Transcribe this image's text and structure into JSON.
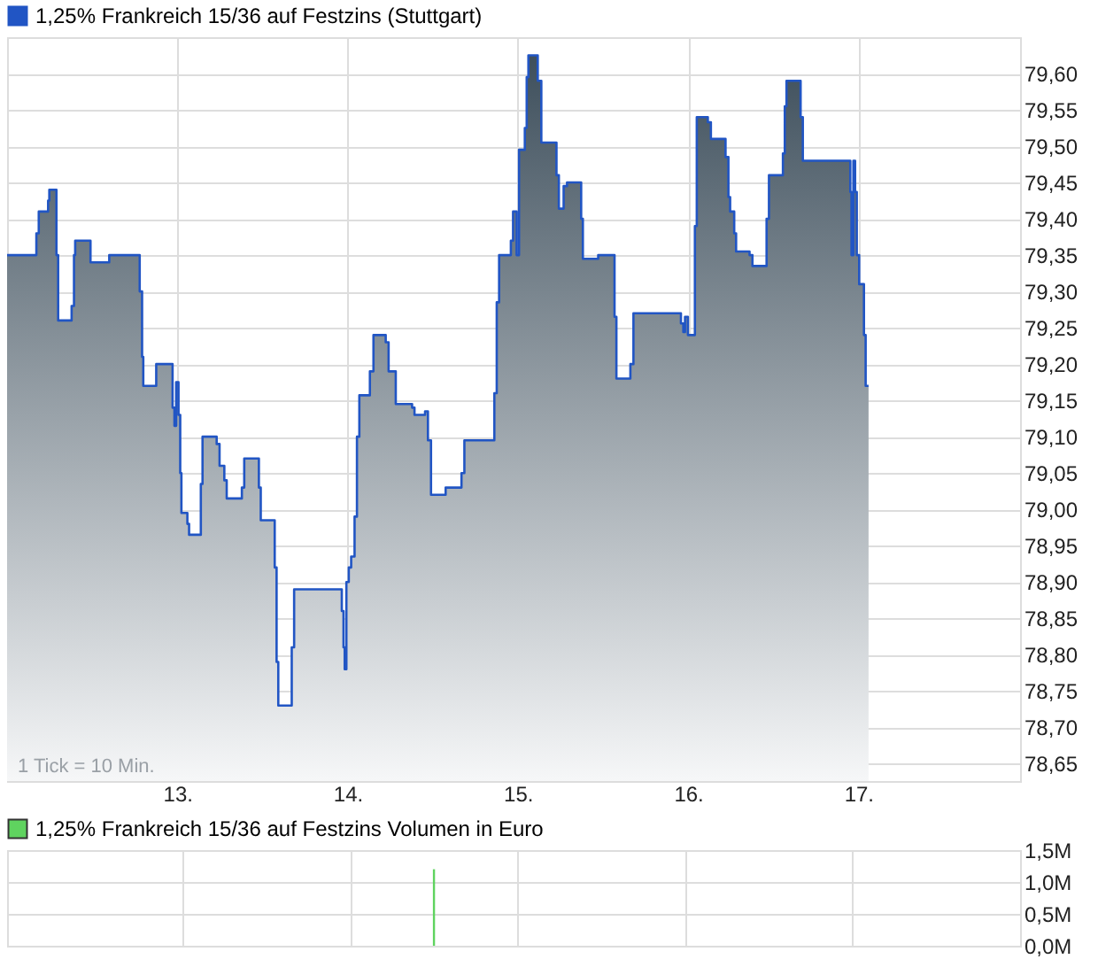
{
  "chart_data": [
    {
      "type": "area",
      "legend": "top left",
      "grid": true,
      "annotations": [
        "1 Tick = 10 Min."
      ],
      "xlim": [
        12.0,
        17.95
      ],
      "xticks": [
        {
          "value": 13,
          "label": "13."
        },
        {
          "value": 14,
          "label": "14."
        },
        {
          "value": 15,
          "label": "15."
        },
        {
          "value": 16,
          "label": "16."
        },
        {
          "value": 17,
          "label": "17."
        }
      ],
      "ylim": [
        78.626,
        79.65
      ],
      "yticks": [
        {
          "value": 78.65,
          "label": "78,65"
        },
        {
          "value": 78.7,
          "label": "78,70"
        },
        {
          "value": 78.75,
          "label": "78,75"
        },
        {
          "value": 78.8,
          "label": "78,80"
        },
        {
          "value": 78.85,
          "label": "78,85"
        },
        {
          "value": 78.9,
          "label": "78,90"
        },
        {
          "value": 78.95,
          "label": "78,95"
        },
        {
          "value": 79.0,
          "label": "79,00"
        },
        {
          "value": 79.05,
          "label": "79,05"
        },
        {
          "value": 79.1,
          "label": "79,10"
        },
        {
          "value": 79.15,
          "label": "79,15"
        },
        {
          "value": 79.2,
          "label": "79,20"
        },
        {
          "value": 79.25,
          "label": "79,25"
        },
        {
          "value": 79.3,
          "label": "79,30"
        },
        {
          "value": 79.35,
          "label": "79,35"
        },
        {
          "value": 79.4,
          "label": "79,40"
        },
        {
          "value": 79.45,
          "label": "79,45"
        },
        {
          "value": 79.5,
          "label": "79,50"
        },
        {
          "value": 79.55,
          "label": "79,55"
        },
        {
          "value": 79.6,
          "label": "79,60"
        }
      ],
      "series": [
        {
          "name": "1,25% Frankreich 15/36 auf Festzins (Stuttgart)",
          "color": "#2155c4",
          "x": [
            12.0,
            12.172,
            12.172,
            12.186,
            12.186,
            12.241,
            12.241,
            12.248,
            12.248,
            12.29,
            12.29,
            12.3,
            12.3,
            12.379,
            12.379,
            12.393,
            12.393,
            12.4,
            12.4,
            12.49,
            12.49,
            12.576,
            12.576,
            12.6,
            12.6,
            12.779,
            12.779,
            12.793,
            12.793,
            12.8,
            12.8,
            12.876,
            12.876,
            12.886,
            12.886,
            12.972,
            12.972,
            12.983,
            12.983,
            12.993,
            12.993,
            13.007,
            13.007,
            13.017,
            13.017,
            13.024,
            13.024,
            13.059,
            13.059,
            13.069,
            13.069,
            13.138,
            13.138,
            13.148,
            13.148,
            13.231,
            13.231,
            13.248,
            13.248,
            13.276,
            13.276,
            13.29,
            13.29,
            13.379,
            13.379,
            13.393,
            13.393,
            13.479,
            13.479,
            13.49,
            13.49,
            13.572,
            13.572,
            13.583,
            13.583,
            13.593,
            13.593,
            13.672,
            13.672,
            13.686,
            13.686,
            13.966,
            13.966,
            13.976,
            13.976,
            13.983,
            13.983,
            13.993,
            13.993,
            14.007,
            14.007,
            14.021,
            14.021,
            14.041,
            14.041,
            14.055,
            14.055,
            14.069,
            14.069,
            14.131,
            14.131,
            14.152,
            14.152,
            14.224,
            14.224,
            14.241,
            14.241,
            14.283,
            14.283,
            14.379,
            14.379,
            14.393,
            14.393,
            14.455,
            14.455,
            14.472,
            14.472,
            14.49,
            14.49,
            14.576,
            14.576,
            14.669,
            14.669,
            14.686,
            14.686,
            14.862,
            14.862,
            14.876,
            14.876,
            14.89,
            14.89,
            14.959,
            14.959,
            14.972,
            14.972,
            14.993,
            14.993,
            15.007,
            15.007,
            15.041,
            15.041,
            15.052,
            15.052,
            15.062,
            15.062,
            15.117,
            15.117,
            15.138,
            15.138,
            15.227,
            15.227,
            15.241,
            15.241,
            15.269,
            15.269,
            15.289,
            15.289,
            15.372,
            15.372,
            15.382,
            15.382,
            15.472,
            15.472,
            15.568,
            15.568,
            15.579,
            15.579,
            15.661,
            15.661,
            15.679,
            15.679,
            15.958,
            15.958,
            15.972,
            15.972,
            15.982,
            15.982,
            15.999,
            15.999,
            16.04,
            16.04,
            16.051,
            16.051,
            16.116,
            16.116,
            16.134,
            16.134,
            16.22,
            16.22,
            16.237,
            16.237,
            16.247,
            16.247,
            16.271,
            16.271,
            16.282,
            16.282,
            16.361,
            16.361,
            16.378,
            16.378,
            16.461,
            16.461,
            16.475,
            16.475,
            16.557,
            16.557,
            16.568,
            16.568,
            16.578,
            16.578,
            16.661,
            16.661,
            16.674,
            16.674,
            16.953,
            16.953,
            16.96,
            16.96,
            16.971,
            16.971,
            16.981,
            16.981,
            16.991,
            16.991,
            17.005,
            17.005,
            17.033,
            17.033,
            17.043,
            17.043,
            17.06
          ],
          "values": [
            79.35,
            79.35,
            79.38,
            79.38,
            79.41,
            79.41,
            79.425,
            79.425,
            79.44,
            79.44,
            79.35,
            79.35,
            79.26,
            79.26,
            79.28,
            79.28,
            79.35,
            79.35,
            79.37,
            79.37,
            79.34,
            79.34,
            79.34,
            79.34,
            79.35,
            79.35,
            79.3,
            79.3,
            79.21,
            79.21,
            79.17,
            79.17,
            79.2,
            79.2,
            79.2,
            79.2,
            79.14,
            79.14,
            79.115,
            79.115,
            79.175,
            79.175,
            79.13,
            79.13,
            79.05,
            79.05,
            78.995,
            78.995,
            78.98,
            78.98,
            78.965,
            78.965,
            79.035,
            79.035,
            79.1,
            79.1,
            79.09,
            79.09,
            79.06,
            79.06,
            79.04,
            79.04,
            79.015,
            79.015,
            79.03,
            79.03,
            79.07,
            79.07,
            79.03,
            79.03,
            78.985,
            78.985,
            78.92,
            78.92,
            78.79,
            78.79,
            78.73,
            78.73,
            78.81,
            78.81,
            78.89,
            78.89,
            78.86,
            78.86,
            78.81,
            78.81,
            78.78,
            78.78,
            78.9,
            78.9,
            78.92,
            78.92,
            78.935,
            78.935,
            78.99,
            78.99,
            79.1,
            79.1,
            79.157,
            79.157,
            79.19,
            79.19,
            79.24,
            79.24,
            79.23,
            79.23,
            79.19,
            79.19,
            79.145,
            79.145,
            79.14,
            79.14,
            79.13,
            79.13,
            79.135,
            79.135,
            79.095,
            79.095,
            79.02,
            79.02,
            79.03,
            79.03,
            79.05,
            79.05,
            79.095,
            79.095,
            79.16,
            79.16,
            79.285,
            79.285,
            79.35,
            79.35,
            79.37,
            79.37,
            79.41,
            79.41,
            79.35,
            79.35,
            79.495,
            79.495,
            79.525,
            79.525,
            79.595,
            79.595,
            79.625,
            79.625,
            79.59,
            79.59,
            79.505,
            79.505,
            79.46,
            79.46,
            79.414,
            79.414,
            79.445,
            79.445,
            79.45,
            79.45,
            79.4,
            79.4,
            79.345,
            79.345,
            79.35,
            79.35,
            79.265,
            79.265,
            79.18,
            79.18,
            79.2,
            79.2,
            79.27,
            79.27,
            79.256,
            79.256,
            79.244,
            79.244,
            79.265,
            79.265,
            79.24,
            79.24,
            79.39,
            79.39,
            79.54,
            79.54,
            79.533,
            79.533,
            79.51,
            79.51,
            79.485,
            79.485,
            79.43,
            79.43,
            79.41,
            79.41,
            79.38,
            79.38,
            79.355,
            79.355,
            79.35,
            79.35,
            79.335,
            79.335,
            79.4,
            79.4,
            79.46,
            79.46,
            79.49,
            79.49,
            79.555,
            79.555,
            79.59,
            79.59,
            79.54,
            79.54,
            79.48,
            79.48,
            79.437,
            79.437,
            79.35,
            79.35,
            79.48,
            79.48,
            79.437,
            79.437,
            79.35,
            79.35,
            79.31,
            79.31,
            79.24,
            79.24,
            79.17,
            79.17
          ]
        }
      ]
    },
    {
      "type": "bar",
      "legend": "top left",
      "grid": true,
      "tick_labels": "y",
      "xlim": [
        12.0,
        17.95
      ],
      "xticks": [
        {
          "value": 13,
          "label": null
        },
        {
          "value": 14,
          "label": null
        },
        {
          "value": 15,
          "label": null
        },
        {
          "value": 16,
          "label": null
        },
        {
          "value": 17,
          "label": null
        }
      ],
      "ylim": [
        0,
        1.5
      ],
      "yticks": [
        {
          "value": 0,
          "label": "0,0M"
        },
        {
          "value": 0.5,
          "label": "0,5M"
        },
        {
          "value": 1.0,
          "label": "1,0M"
        },
        {
          "value": 1.5,
          "label": "1,5M"
        }
      ],
      "series": [
        {
          "name": "1,25% Frankreich 15/36 auf Festzins Volumen in Euro",
          "color": "#5fd35f",
          "x": [
            14.499
          ],
          "values": [
            1.2
          ]
        }
      ]
    }
  ]
}
